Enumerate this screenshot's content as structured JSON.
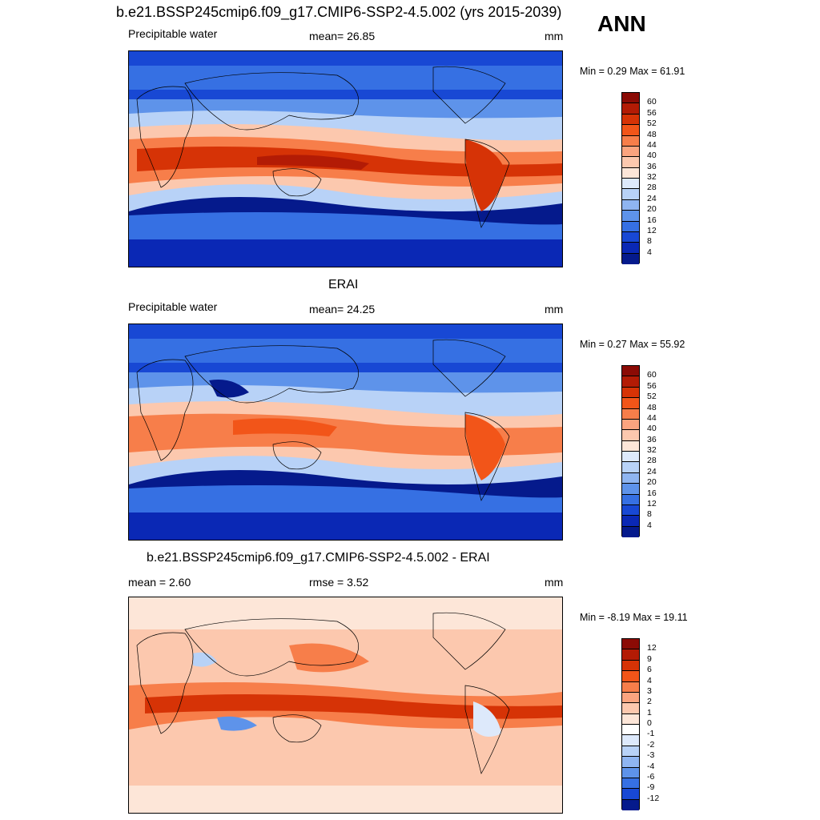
{
  "header": {
    "title": "b.e21.BSSP245cmip6.f09_g17.CMIP6-SSP2-4.5.002 (yrs 2015-2039)",
    "season": "ANN"
  },
  "panels": [
    {
      "id": "model",
      "left_label": "Precipitable water",
      "center_label": "mean=  26.85",
      "units": "mm",
      "minmax": "Min =   0.29 Max =  61.91",
      "colorbar_ticks": [
        "60",
        "56",
        "52",
        "48",
        "44",
        "40",
        "36",
        "32",
        "28",
        "24",
        "20",
        "16",
        "12",
        "8",
        "4"
      ]
    },
    {
      "id": "obs",
      "title": "ERAI",
      "left_label": "Precipitable water",
      "center_label": "mean=  24.25",
      "units": "mm",
      "minmax": "Min =   0.27 Max =  55.92",
      "colorbar_ticks": [
        "60",
        "56",
        "52",
        "48",
        "44",
        "40",
        "36",
        "32",
        "28",
        "24",
        "20",
        "16",
        "12",
        "8",
        "4"
      ]
    },
    {
      "id": "diff",
      "title": "b.e21.BSSP245cmip6.f09_g17.CMIP6-SSP2-4.5.002 - ERAI",
      "left_label": "mean =   2.60",
      "center_label": "rmse =   3.52",
      "units": "mm",
      "minmax": "Min =  -8.19 Max =  19.11",
      "colorbar_ticks": [
        "12",
        "9",
        "6",
        "4",
        "3",
        "2",
        "1",
        "0",
        "-1",
        "-2",
        "-3",
        "-4",
        "-6",
        "-9",
        "-12"
      ]
    }
  ],
  "colors": {
    "abs_scale": [
      "#8b0b05",
      "#b31b05",
      "#d63306",
      "#f25519",
      "#f77e4a",
      "#fba47f",
      "#fcc8ae",
      "#fde6d8",
      "#dde9fb",
      "#b8d2f7",
      "#8fb5f1",
      "#5e93ea",
      "#3670e3",
      "#1848d4",
      "#0a28b5",
      "#051a8c"
    ],
    "diff_scale": [
      "#8b0b05",
      "#b31b05",
      "#d63306",
      "#f25519",
      "#f77e4a",
      "#fba47f",
      "#fcc8ae",
      "#fde6d8",
      "#ffffff",
      "#dde9fb",
      "#b8d2f7",
      "#8fb5f1",
      "#5e93ea",
      "#3670e3",
      "#1848d4",
      "#051a8c"
    ]
  }
}
